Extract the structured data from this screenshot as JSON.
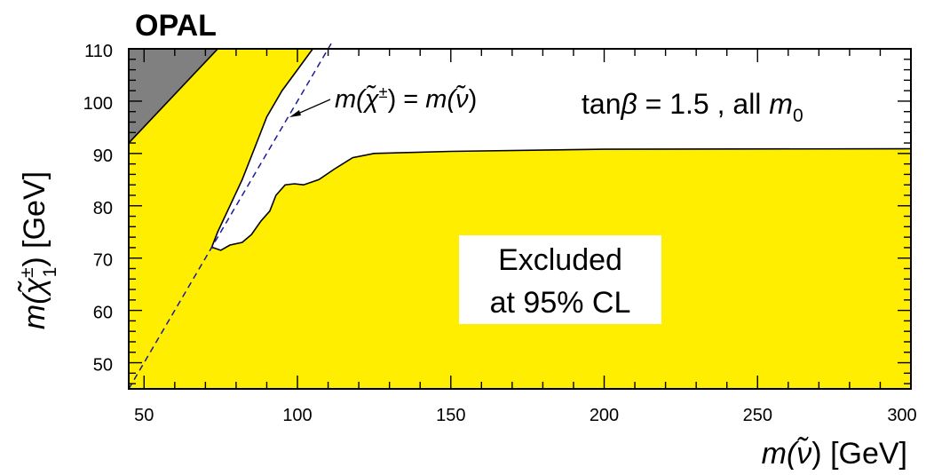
{
  "chart_data": {
    "type": "area",
    "experiment_label": "OPAL",
    "xlabel_var": "m(",
    "xlabel_sym": "ν̃",
    "xlabel_rest": ") [GeV]",
    "ylabel_var": "m(",
    "ylabel_sym": "χ̃",
    "ylabel_sup": "±",
    "ylabel_sub": "1",
    "ylabel_rest": ") [GeV]",
    "xlim": [
      45,
      300
    ],
    "ylim": [
      45,
      110
    ],
    "xticks": [
      50,
      100,
      150,
      200,
      250,
      300
    ],
    "yticks": [
      50,
      60,
      70,
      80,
      90,
      100,
      110
    ],
    "grid": false,
    "annotations": {
      "diagonal_label_pre": "m(",
      "diagonal_label_mid": "χ̃",
      "diagonal_label_sup": "±",
      "diagonal_label_eq": ") = ",
      "diagonal_label_m": "m(",
      "diagonal_label_nu": "ν̃",
      "diagonal_label_end": ")",
      "param_pre": "tan",
      "param_beta": "β",
      "param_mid": " = 1.5 , all ",
      "param_m": "m",
      "param_sub": "0",
      "excluded_line1": "Excluded",
      "excluded_line2": "at 95% CL"
    },
    "regions": {
      "theory_forbidden": {
        "color": "#808080",
        "boundary": [
          [
            45,
            92
          ],
          [
            74,
            110
          ]
        ]
      },
      "excluded": {
        "color": "#FFEE00",
        "upper_boundary": [
          [
            72.5,
            72
          ],
          [
            75,
            71.5
          ],
          [
            78,
            72.5
          ],
          [
            82,
            73
          ],
          [
            85,
            74.5
          ],
          [
            88,
            77
          ],
          [
            91,
            79
          ],
          [
            93,
            82
          ],
          [
            96,
            84
          ],
          [
            99,
            84.2
          ],
          [
            102,
            84
          ],
          [
            107,
            85
          ],
          [
            112,
            87
          ],
          [
            118,
            89.2
          ],
          [
            125,
            90
          ],
          [
            150,
            90.4
          ],
          [
            200,
            90.8
          ],
          [
            300,
            90.9
          ]
        ],
        "island_left_boundary": [
          [
            72,
            72
          ],
          [
            74,
            75
          ],
          [
            78,
            80
          ],
          [
            82,
            85
          ],
          [
            86,
            91
          ],
          [
            90,
            97
          ],
          [
            95,
            102
          ],
          [
            100,
            106
          ],
          [
            105,
            110
          ]
        ]
      },
      "diagonal": {
        "style": "dashed",
        "color": "#1a1a99",
        "points": [
          [
            45,
            45
          ],
          [
            111,
            111
          ]
        ]
      }
    }
  }
}
